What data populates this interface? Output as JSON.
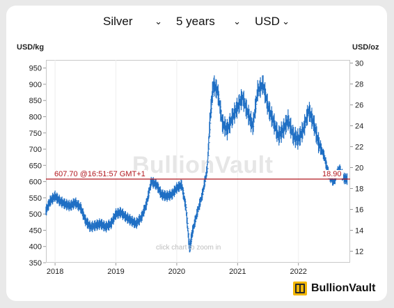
{
  "controls": {
    "metal": "Silver",
    "period": "5 years",
    "currency": "USD"
  },
  "units": {
    "left": "USD/kg",
    "right": "USD/oz"
  },
  "watermark": "BullionVault",
  "hint": "click chart to zoom in",
  "current": {
    "left_label": "607.70",
    "time_label": "@16:51:57 GMT+1",
    "right_label": "18.90"
  },
  "brand": {
    "name": "BullionVault"
  },
  "colors": {
    "line": "#1f6fc4",
    "current": "#b1161d",
    "axis": "#c8c8c8"
  },
  "chart_data": {
    "type": "line",
    "title": "",
    "xlabel": "",
    "ylabel": "USD/kg",
    "y2label": "USD/oz",
    "ylim": [
      350,
      975
    ],
    "y2lim": [
      10.9,
      30.3
    ],
    "xlim": [
      2017.85,
      2022.85
    ],
    "grid": true,
    "legend": "none",
    "yticks": [
      350,
      400,
      450,
      500,
      550,
      600,
      650,
      700,
      750,
      800,
      850,
      900,
      950
    ],
    "y2ticks": [
      12,
      14,
      16,
      18,
      20,
      22,
      24,
      26,
      28,
      30
    ],
    "xticks": [
      2018,
      2019,
      2020,
      2021,
      2022
    ],
    "current_value": 607.7,
    "series": [
      {
        "x": [
          2017.85,
          2017.92,
          2018.0,
          2018.08,
          2018.17,
          2018.25,
          2018.33,
          2018.42,
          2018.5,
          2018.58,
          2018.67,
          2018.75,
          2018.83,
          2018.92,
          2019.0,
          2019.08,
          2019.17,
          2019.25,
          2019.33,
          2019.42,
          2019.5,
          2019.58,
          2019.67,
          2019.75,
          2019.83,
          2019.92,
          2020.0,
          2020.08,
          2020.15,
          2020.21,
          2020.25,
          2020.33,
          2020.42,
          2020.5,
          2020.55,
          2020.6,
          2020.67,
          2020.75,
          2020.83,
          2020.92,
          2021.0,
          2021.08,
          2021.17,
          2021.25,
          2021.33,
          2021.42,
          2021.5,
          2021.58,
          2021.67,
          2021.75,
          2021.83,
          2021.92,
          2022.0,
          2022.08,
          2022.17,
          2022.25,
          2022.33,
          2022.42,
          2022.5,
          2022.58,
          2022.67,
          2022.75,
          2022.8
        ],
        "values": [
          510,
          540,
          555,
          540,
          530,
          525,
          535,
          520,
          480,
          460,
          465,
          470,
          460,
          470,
          500,
          505,
          490,
          480,
          470,
          490,
          530,
          600,
          590,
          560,
          555,
          560,
          580,
          590,
          520,
          390,
          440,
          500,
          560,
          640,
          800,
          900,
          880,
          780,
          760,
          800,
          830,
          860,
          810,
          770,
          880,
          900,
          830,
          790,
          740,
          760,
          790,
          740,
          730,
          760,
          820,
          780,
          720,
          680,
          620,
          600,
          640,
          610,
          607.7
        ]
      }
    ]
  }
}
